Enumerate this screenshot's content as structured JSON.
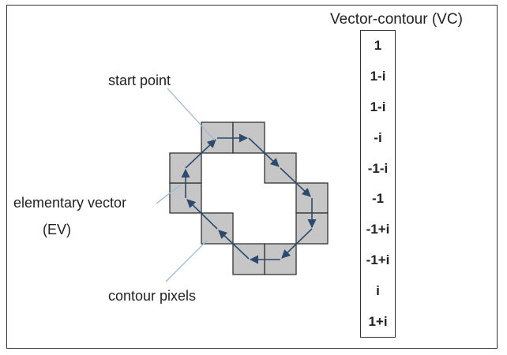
{
  "labels": {
    "start_point": "start point",
    "elementary_vector": "elementary vector",
    "ev_abbrev": "(EV)",
    "contour_pixels": "contour pixels"
  },
  "vector_contour": {
    "title": "Vector-contour (VC)",
    "items": [
      "1",
      "1-i",
      "1-i",
      "-i",
      "-1-i",
      "-1",
      "-1+i",
      "-1+i",
      "i",
      "1+i"
    ]
  },
  "colors": {
    "pixel_fill": "#c6c6c6",
    "grid_line": "#333333",
    "arrow": "#2b4a6e",
    "leader_line": "#9bbad6"
  }
}
